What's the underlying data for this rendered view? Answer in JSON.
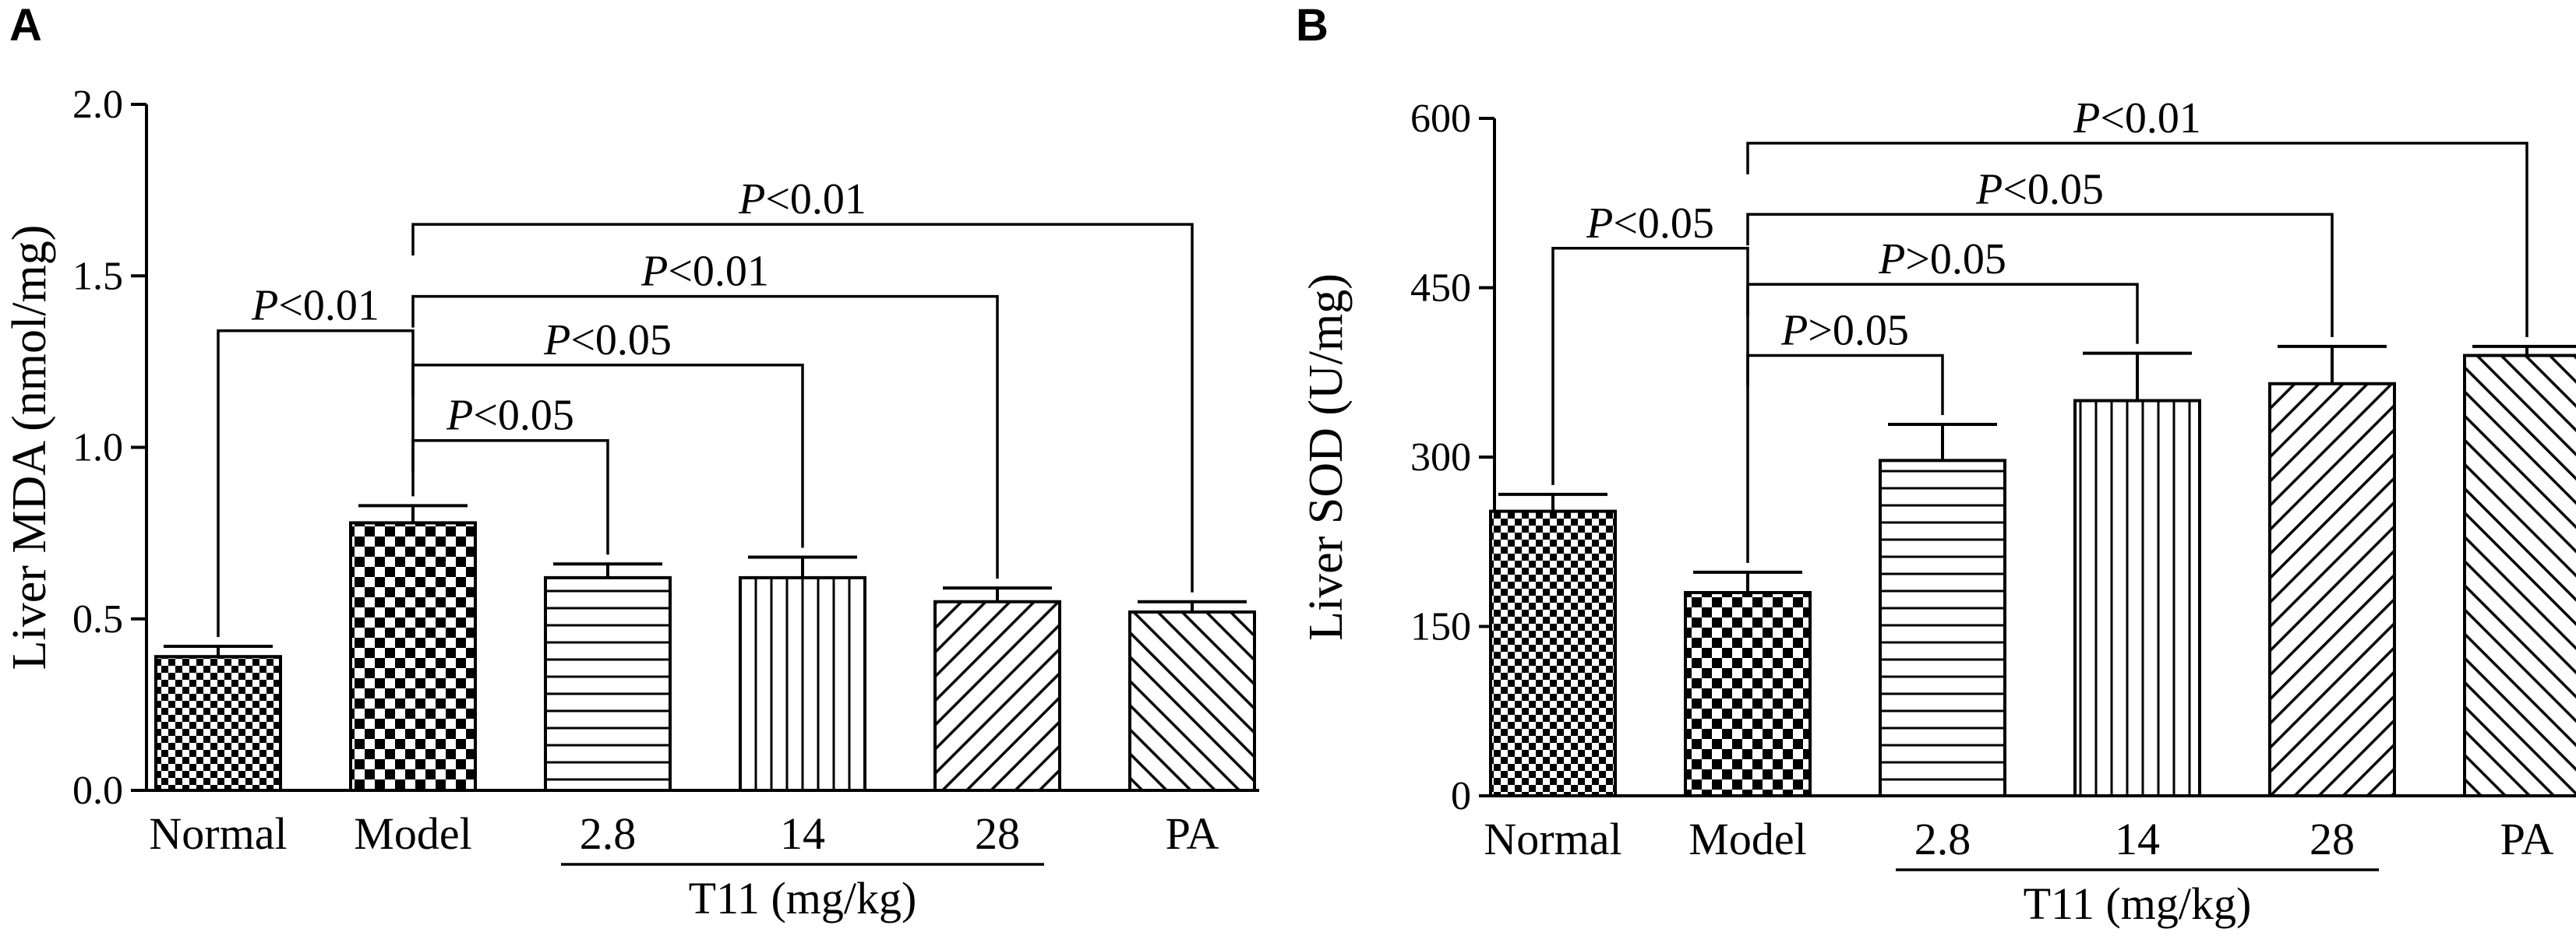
{
  "chart_data": [
    {
      "panel": "A",
      "type": "bar",
      "ylabel": "Liver MDA (nmol/mg)",
      "ylim": [
        0,
        2.0
      ],
      "yticks": [
        "0.0",
        "0.5",
        "1.0",
        "1.5",
        "2.0"
      ],
      "ytick_values": [
        0,
        0.5,
        1.0,
        1.5,
        2.0
      ],
      "categories": [
        "Normal",
        "Model",
        "2.8",
        "14",
        "28",
        "PA"
      ],
      "values": [
        0.39,
        0.78,
        0.62,
        0.62,
        0.55,
        0.52
      ],
      "errors": [
        0.03,
        0.05,
        0.04,
        0.06,
        0.04,
        0.03
      ],
      "patterns": [
        "checker-small",
        "checker-large",
        "horizontal",
        "vertical",
        "diagonal",
        "diagonal-back"
      ],
      "group_label": "T11 (mg/kg)",
      "group_categories": [
        2,
        4
      ],
      "comparisons": [
        {
          "from": 0,
          "to": 1,
          "label": "P<0.01",
          "level": 1.34,
          "ref": "Model"
        },
        {
          "from": 1,
          "to": 2,
          "label": "P<0.05",
          "level": 1.02,
          "ref": "Model"
        },
        {
          "from": 1,
          "to": 3,
          "label": "P<0.05",
          "level": 1.24,
          "ref": "Model"
        },
        {
          "from": 1,
          "to": 4,
          "label": "P<0.01",
          "level": 1.44,
          "ref": "Model"
        },
        {
          "from": 1,
          "to": 5,
          "label": "P<0.01",
          "level": 1.65,
          "ref": "Model"
        }
      ]
    },
    {
      "panel": "B",
      "type": "bar",
      "ylabel": "Liver SOD (U/mg)",
      "ylim": [
        0,
        600
      ],
      "yticks": [
        "0",
        "150",
        "300",
        "450",
        "600"
      ],
      "ytick_values": [
        0,
        150,
        300,
        450,
        600
      ],
      "categories": [
        "Normal",
        "Model",
        "2.8",
        "14",
        "28",
        "PA"
      ],
      "values": [
        252,
        180,
        297,
        350,
        365,
        390
      ],
      "errors": [
        15,
        18,
        32,
        42,
        33,
        8
      ],
      "patterns": [
        "checker-small",
        "checker-large",
        "horizontal",
        "vertical",
        "diagonal",
        "diagonal-back"
      ],
      "group_label": "T11 (mg/kg)",
      "group_categories": [
        2,
        4
      ],
      "comparisons": [
        {
          "from": 0,
          "to": 1,
          "label": "P<0.05",
          "level": 485
        },
        {
          "from": 1,
          "to": 2,
          "label": "P>0.05",
          "level": 390
        },
        {
          "from": 1,
          "to": 3,
          "label": "P>0.05",
          "level": 453
        },
        {
          "from": 1,
          "to": 4,
          "label": "P<0.05",
          "level": 515
        },
        {
          "from": 1,
          "to": 5,
          "label": "P<0.01",
          "level": 578
        }
      ]
    }
  ]
}
